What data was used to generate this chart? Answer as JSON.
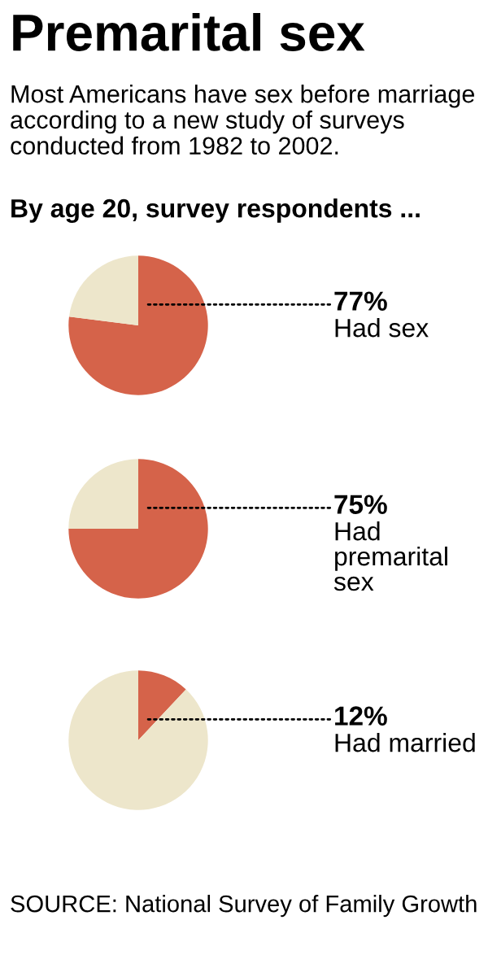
{
  "chart_data": [
    {
      "type": "pie",
      "title": "Premarital sex",
      "subtitle": "Most Americans have sex before marriage according to a new study of surveys conducted from 1982 to 2002.",
      "annotations": [
        "By age 20, survey respondents ..."
      ],
      "categories": [
        "Had sex",
        null
      ],
      "values": [
        77,
        23
      ],
      "value_labels": [
        "77%",
        null
      ],
      "colors": [
        "#d5634a",
        "#ede6cb"
      ]
    },
    {
      "type": "pie",
      "categories": [
        "Had premarital sex",
        null
      ],
      "values": [
        75,
        25
      ],
      "value_labels": [
        "75%",
        null
      ],
      "colors": [
        "#d5634a",
        "#ede6cb"
      ]
    },
    {
      "type": "pie",
      "annotations": [
        "SOURCE: National Survey of Family Growth"
      ],
      "categories": [
        "Had married",
        null
      ],
      "values": [
        12,
        88
      ],
      "value_labels": [
        "12%",
        null
      ],
      "colors": [
        "#d5634a",
        "#ede6cb"
      ]
    }
  ]
}
